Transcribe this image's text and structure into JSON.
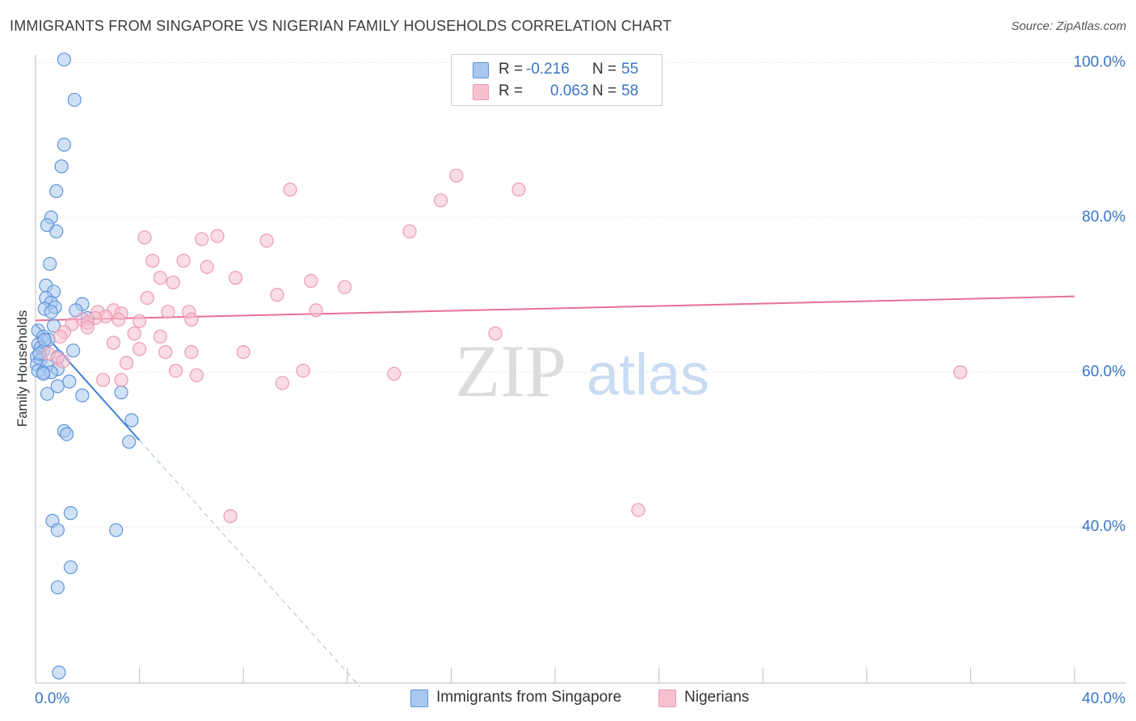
{
  "header": {
    "title": "IMMIGRANTS FROM SINGAPORE VS NIGERIAN FAMILY HOUSEHOLDS CORRELATION CHART",
    "source": "Source: ZipAtlas.com"
  },
  "watermark": {
    "zip": "ZIP",
    "atlas": "atlas"
  },
  "legend": {
    "r_label": "R =",
    "n_label": "N =",
    "series": [
      {
        "r": "-0.216",
        "n": "55"
      },
      {
        "r": "0.063",
        "n": "58"
      }
    ]
  },
  "colors": {
    "blue_fill": "#a9c8ef",
    "blue_stroke": "#5f95db",
    "blue_line": "#3f7fd4",
    "pink_fill": "#f6c0cf",
    "pink_stroke": "#ec9ab2",
    "pink_line": "#e86f96",
    "tick_label": "#3a75c4",
    "grid": "#e6e6e6"
  },
  "chart_data": {
    "type": "scatter",
    "title": "IMMIGRANTS FROM SINGAPORE VS NIGERIAN FAMILY HOUSEHOLDS CORRELATION CHART",
    "xlabel": "",
    "ylabel": "Family Households",
    "xlim": [
      0,
      40
    ],
    "ylim": [
      20,
      102
    ],
    "x_tick_labels": [
      {
        "value": 0,
        "label": "0.0%"
      },
      {
        "value": 40,
        "label": "40.0%"
      }
    ],
    "y_tick_labels": [
      {
        "value": 40,
        "label": "40.0%"
      },
      {
        "value": 60,
        "label": "60.0%"
      },
      {
        "value": 80,
        "label": "80.0%"
      },
      {
        "value": 100,
        "label": "100.0%"
      }
    ],
    "grid": true,
    "legend_position": "top-center",
    "series": [
      {
        "name": "Immigrants from Singapore",
        "color": "blue",
        "trend": {
          "x0": 0,
          "y0": 66.2,
          "x1": 4.0,
          "y1": 51.2,
          "dash_to_x": 12.5
        },
        "points": [
          [
            1.1,
            100.4
          ],
          [
            1.5,
            95.2
          ],
          [
            1.1,
            89.4
          ],
          [
            1.0,
            86.6
          ],
          [
            0.8,
            83.4
          ],
          [
            0.6,
            80.0
          ],
          [
            0.45,
            79.0
          ],
          [
            0.8,
            78.2
          ],
          [
            0.55,
            74.0
          ],
          [
            0.4,
            71.2
          ],
          [
            0.7,
            70.4
          ],
          [
            0.4,
            69.6
          ],
          [
            0.6,
            69.0
          ],
          [
            1.8,
            68.8
          ],
          [
            0.35,
            68.2
          ],
          [
            0.75,
            68.4
          ],
          [
            1.55,
            68.0
          ],
          [
            0.6,
            67.8
          ],
          [
            2.0,
            67.0
          ],
          [
            0.7,
            66.0
          ],
          [
            0.1,
            65.4
          ],
          [
            0.3,
            64.6
          ],
          [
            0.5,
            64.2
          ],
          [
            0.1,
            63.6
          ],
          [
            0.2,
            63.2
          ],
          [
            0.3,
            62.8
          ],
          [
            1.45,
            62.8
          ],
          [
            0.05,
            62.0
          ],
          [
            0.2,
            61.6
          ],
          [
            0.85,
            62.0
          ],
          [
            0.05,
            61.0
          ],
          [
            0.45,
            60.8
          ],
          [
            0.85,
            60.4
          ],
          [
            0.1,
            60.2
          ],
          [
            0.3,
            60.0
          ],
          [
            0.6,
            60.0
          ],
          [
            0.3,
            59.8
          ],
          [
            1.3,
            58.8
          ],
          [
            0.85,
            58.2
          ],
          [
            0.45,
            57.2
          ],
          [
            1.8,
            57.0
          ],
          [
            3.3,
            57.4
          ],
          [
            3.7,
            53.8
          ],
          [
            1.1,
            52.4
          ],
          [
            1.2,
            52.0
          ],
          [
            3.6,
            51.0
          ],
          [
            1.35,
            41.8
          ],
          [
            0.65,
            40.8
          ],
          [
            0.85,
            39.6
          ],
          [
            3.1,
            39.6
          ],
          [
            1.35,
            34.8
          ],
          [
            0.85,
            32.2
          ],
          [
            0.9,
            21.2
          ],
          [
            0.35,
            64.2
          ],
          [
            0.15,
            62.4
          ]
        ]
      },
      {
        "name": "Nigerians",
        "color": "pink",
        "trend": {
          "x0": 0,
          "y0": 66.7,
          "x1": 40,
          "y1": 69.8
        },
        "points": [
          [
            16.2,
            85.4
          ],
          [
            9.8,
            83.6
          ],
          [
            15.6,
            82.2
          ],
          [
            18.6,
            83.6
          ],
          [
            14.4,
            78.2
          ],
          [
            4.2,
            77.4
          ],
          [
            6.4,
            77.2
          ],
          [
            7.0,
            77.6
          ],
          [
            8.9,
            77.0
          ],
          [
            4.5,
            74.4
          ],
          [
            5.7,
            74.4
          ],
          [
            6.6,
            73.6
          ],
          [
            4.8,
            72.2
          ],
          [
            7.7,
            72.2
          ],
          [
            5.3,
            71.6
          ],
          [
            10.6,
            71.8
          ],
          [
            11.9,
            71.0
          ],
          [
            9.3,
            70.0
          ],
          [
            4.3,
            69.6
          ],
          [
            3.0,
            68.0
          ],
          [
            5.1,
            67.8
          ],
          [
            5.9,
            67.8
          ],
          [
            10.8,
            68.0
          ],
          [
            3.3,
            67.6
          ],
          [
            2.4,
            67.8
          ],
          [
            2.7,
            67.2
          ],
          [
            2.3,
            67.0
          ],
          [
            1.8,
            66.8
          ],
          [
            2.0,
            66.4
          ],
          [
            3.2,
            66.8
          ],
          [
            6.0,
            66.8
          ],
          [
            4.0,
            66.6
          ],
          [
            1.4,
            66.2
          ],
          [
            2.0,
            65.8
          ],
          [
            1.1,
            65.2
          ],
          [
            3.8,
            65.0
          ],
          [
            4.8,
            64.6
          ],
          [
            0.95,
            64.6
          ],
          [
            3.0,
            63.8
          ],
          [
            4.0,
            63.0
          ],
          [
            5.0,
            62.6
          ],
          [
            6.0,
            62.6
          ],
          [
            8.0,
            62.6
          ],
          [
            17.7,
            65.0
          ],
          [
            0.5,
            62.4
          ],
          [
            0.85,
            61.8
          ],
          [
            1.05,
            61.4
          ],
          [
            3.5,
            61.2
          ],
          [
            5.4,
            60.2
          ],
          [
            6.2,
            59.6
          ],
          [
            10.3,
            60.2
          ],
          [
            13.8,
            59.8
          ],
          [
            35.6,
            60.0
          ],
          [
            2.6,
            59.0
          ],
          [
            3.3,
            59.0
          ],
          [
            9.5,
            58.6
          ],
          [
            7.5,
            41.4
          ],
          [
            23.2,
            42.2
          ]
        ]
      }
    ]
  }
}
